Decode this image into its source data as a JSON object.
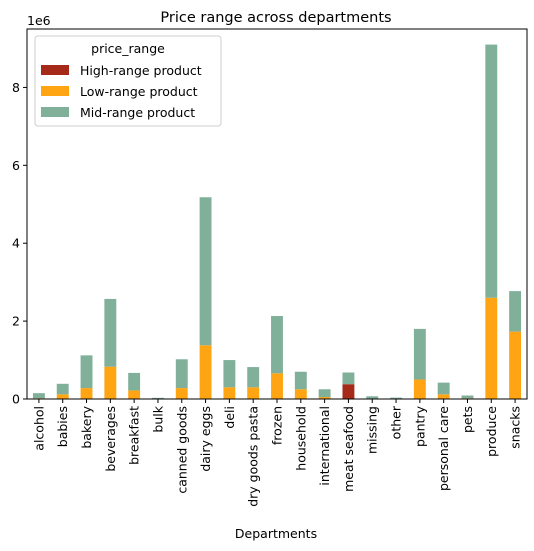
{
  "chart_data": {
    "type": "bar",
    "stacked": true,
    "title": "Price range across departments",
    "xlabel": "Departments",
    "ylabel": "",
    "y_offset_label": "1e6",
    "ylim": [
      0,
      9.5
    ],
    "y_scale": 1000000,
    "yticks": [
      "0",
      "2",
      "4",
      "6",
      "8"
    ],
    "categories": [
      "alcohol",
      "babies",
      "bakery",
      "beverages",
      "breakfast",
      "bulk",
      "canned goods",
      "dairy eggs",
      "deli",
      "dry goods pasta",
      "frozen",
      "household",
      "international",
      "meat seafood",
      "missing",
      "other",
      "pantry",
      "personal care",
      "pets",
      "produce",
      "snacks"
    ],
    "legend": {
      "title": "price_range",
      "placement": "top-left"
    },
    "series": [
      {
        "name": "High-range product",
        "color": "#A52A1A",
        "values": [
          0,
          0,
          0,
          0,
          0,
          0,
          0,
          0,
          0,
          0,
          0,
          0,
          0,
          0.38,
          0,
          0,
          0,
          0,
          0,
          0,
          0
        ]
      },
      {
        "name": "Low-range product",
        "color": "#FFA514",
        "values": [
          0.02,
          0.12,
          0.28,
          0.83,
          0.22,
          0.01,
          0.28,
          1.38,
          0.3,
          0.3,
          0.66,
          0.25,
          0.05,
          0,
          0.01,
          0.005,
          0.5,
          0.12,
          0.02,
          2.6,
          1.73
        ]
      },
      {
        "name": "Mid-range product",
        "color": "#80B09A",
        "values": [
          0.13,
          0.27,
          0.84,
          1.74,
          0.45,
          0.02,
          0.74,
          3.8,
          0.7,
          0.52,
          1.47,
          0.45,
          0.2,
          0.3,
          0.06,
          0.03,
          1.3,
          0.3,
          0.07,
          6.5,
          1.04
        ]
      }
    ]
  }
}
